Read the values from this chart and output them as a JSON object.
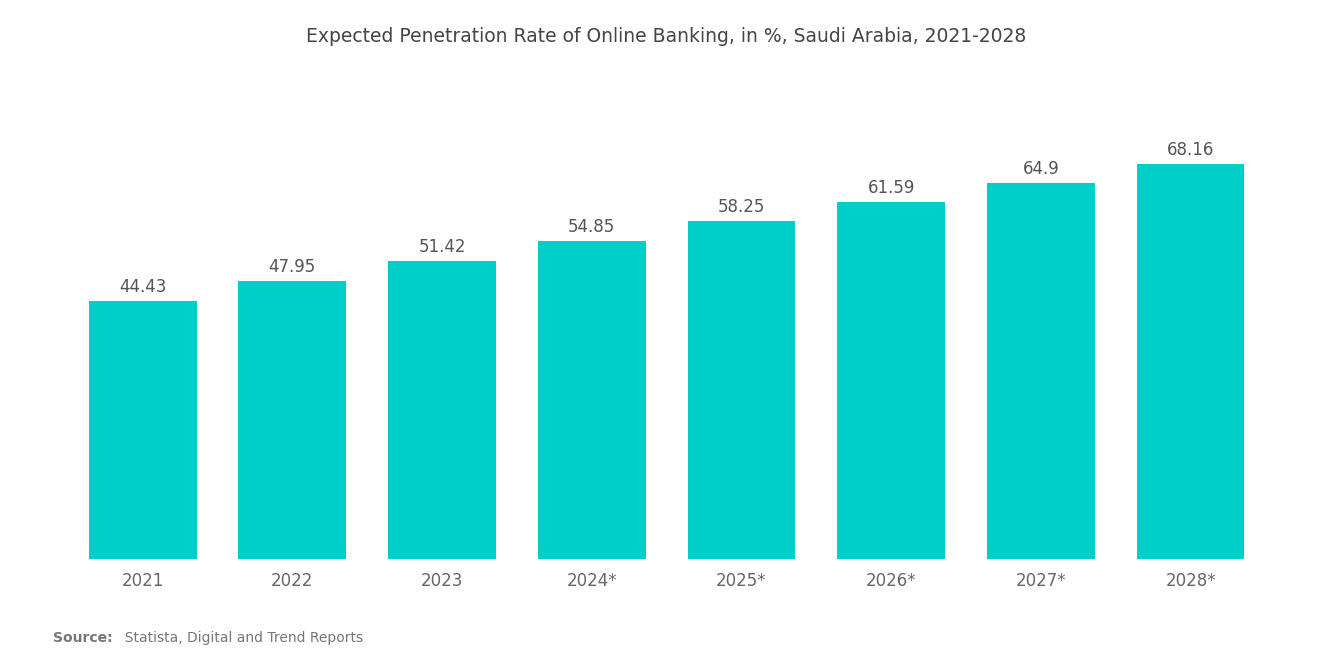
{
  "title": "Expected Penetration Rate of Online Banking, in %, Saudi Arabia, 2021-2028",
  "categories": [
    "2021",
    "2022",
    "2023",
    "2024*",
    "2025*",
    "2026*",
    "2027*",
    "2028*"
  ],
  "values": [
    44.43,
    47.95,
    51.42,
    54.85,
    58.25,
    61.59,
    64.9,
    68.16
  ],
  "bar_color": "#00CEC9",
  "background_color": "#ffffff",
  "title_fontsize": 13.5,
  "label_fontsize": 12,
  "tick_fontsize": 12,
  "source_label": "Source:",
  "source_text": "  Statista, Digital and Trend Reports",
  "ylim": [
    0,
    85
  ],
  "bar_width": 0.72
}
